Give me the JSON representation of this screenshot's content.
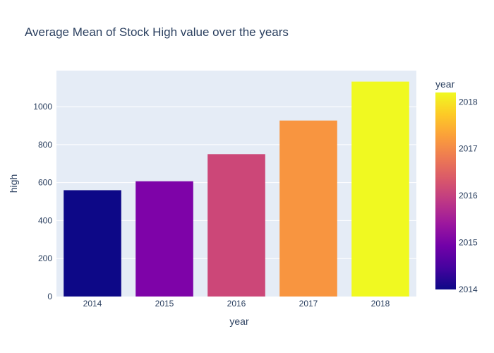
{
  "chart_data": {
    "type": "bar",
    "title": "Average Mean of Stock High value over the years",
    "xlabel": "year",
    "ylabel": "high",
    "categories": [
      "2014",
      "2015",
      "2016",
      "2017",
      "2018"
    ],
    "values": [
      560,
      607,
      750,
      927,
      1132
    ],
    "ylim": [
      0,
      1190
    ],
    "yticks": [
      0,
      200,
      400,
      600,
      800,
      1000
    ],
    "grid": true,
    "colorbar": {
      "title": "year",
      "range": [
        2014,
        2018.2
      ],
      "ticks": [
        "2014",
        "2015",
        "2016",
        "2017",
        "2018"
      ],
      "colorscale": [
        "#0d0887",
        "#46039f",
        "#7201a8",
        "#9c179e",
        "#bd3786",
        "#d8576b",
        "#ed7953",
        "#fb9f3a",
        "#fdca26",
        "#f0f921"
      ]
    },
    "bar_colors": [
      "#0d0887",
      "#7e03a8",
      "#cc4778",
      "#f89540",
      "#f0f921"
    ]
  }
}
